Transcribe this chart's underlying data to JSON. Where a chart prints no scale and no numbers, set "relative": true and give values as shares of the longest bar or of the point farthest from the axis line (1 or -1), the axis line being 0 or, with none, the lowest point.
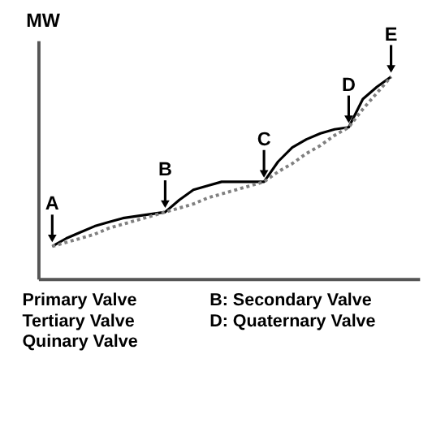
{
  "chart_data": {
    "type": "line",
    "ylabel": "MW",
    "relative": true,
    "grid": false,
    "marker": "none",
    "tick_labels": false,
    "categories": [
      null,
      null,
      null,
      null,
      null,
      null,
      null,
      null,
      null,
      null,
      null,
      null,
      null,
      null,
      null,
      null,
      null,
      null,
      null,
      null,
      null,
      null,
      null,
      null,
      null
    ],
    "series": [
      {
        "color": "#000000",
        "line_style": "solid",
        "values": [
          0.16,
          0.2,
          0.23,
          0.26,
          0.28,
          0.3,
          0.31,
          0.32,
          0.33,
          0.39,
          0.44,
          0.46,
          0.48,
          0.48,
          0.48,
          0.48,
          0.58,
          0.65,
          0.69,
          0.72,
          0.74,
          0.75,
          0.89,
          0.95,
          1.0
        ]
      },
      {
        "color": "#808080",
        "line_style": "dotted",
        "values": [
          0.16,
          0.18,
          0.2,
          0.22,
          0.25,
          0.27,
          0.29,
          0.31,
          0.33,
          0.35,
          0.37,
          0.4,
          0.42,
          0.44,
          0.46,
          0.48,
          0.53,
          0.57,
          0.62,
          0.66,
          0.71,
          0.75,
          0.84,
          0.92,
          1.0
        ]
      }
    ],
    "annotations": [
      {
        "text": "A",
        "y": 0.16
      },
      {
        "text": "B",
        "y": 0.33
      },
      {
        "text": "C",
        "y": 0.48
      },
      {
        "text": "D",
        "y": 0.75
      },
      {
        "text": "E",
        "y": 1.0
      },
      "Primary Valve",
      "B: Secondary Valve",
      "Tertiary Valve",
      "D: Quaternary Valve",
      "Quinary Valve"
    ]
  }
}
